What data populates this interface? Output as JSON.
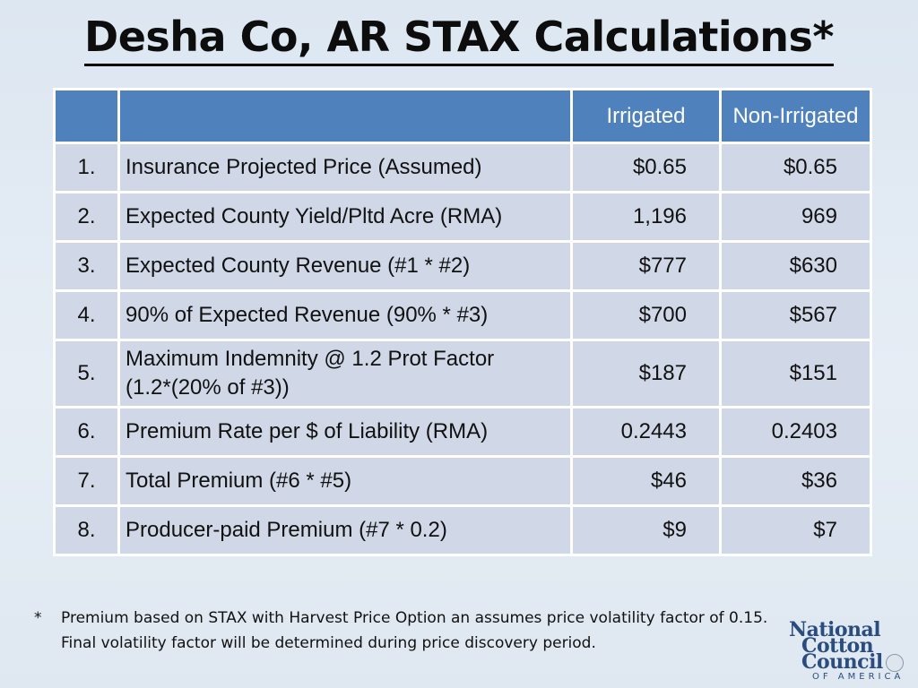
{
  "title": "Desha Co, AR STAX Calculations*",
  "table": {
    "headers": {
      "num": "",
      "desc": "",
      "irrigated": "Irrigated",
      "non_irrigated": "Non-Irrigated"
    },
    "rows": [
      {
        "num": "1.",
        "desc": [
          "Insurance Projected Price (Assumed)"
        ],
        "irrigated": "$0.65",
        "non_irrigated": "$0.65"
      },
      {
        "num": "2.",
        "desc": [
          "Expected County Yield/Pltd Acre (RMA)"
        ],
        "irrigated": "1,196",
        "non_irrigated": "969"
      },
      {
        "num": "3.",
        "desc": [
          "Expected County Revenue (#1 * #2)"
        ],
        "irrigated": "$777",
        "non_irrigated": "$630"
      },
      {
        "num": "4.",
        "desc": [
          "90% of Expected Revenue (90% * #3)"
        ],
        "irrigated": "$700",
        "non_irrigated": "$567"
      },
      {
        "num": "5.",
        "desc": [
          "Maximum Indemnity @ 1.2 Prot Factor",
          "(1.2*(20% of #3))"
        ],
        "irrigated": "$187",
        "non_irrigated": "$151"
      },
      {
        "num": "6.",
        "desc": [
          "Premium Rate per $ of Liability (RMA)"
        ],
        "irrigated": "0.2443",
        "non_irrigated": "0.2403"
      },
      {
        "num": "7.",
        "desc": [
          "Total Premium (#6 * #5)"
        ],
        "irrigated": "$46",
        "non_irrigated": "$36"
      },
      {
        "num": "8.",
        "desc": [
          "Producer-paid Premium (#7 * 0.2)"
        ],
        "irrigated": "$9",
        "non_irrigated": "$7"
      }
    ]
  },
  "footnote": {
    "marker": "*",
    "text": "Premium based on STAX with Harvest Price Option an assumes price volatility factor of 0.15. Final volatility factor will be determined during price discovery period."
  },
  "logo": {
    "line1": "National",
    "line2": "Cotton",
    "line3": "Council",
    "sub": "OF AMERICA"
  },
  "colors": {
    "header_bg": "#4f81bd",
    "row_bg": "#d0d8e8",
    "background": "#dde7f1",
    "logo": "#2b4d7e"
  }
}
